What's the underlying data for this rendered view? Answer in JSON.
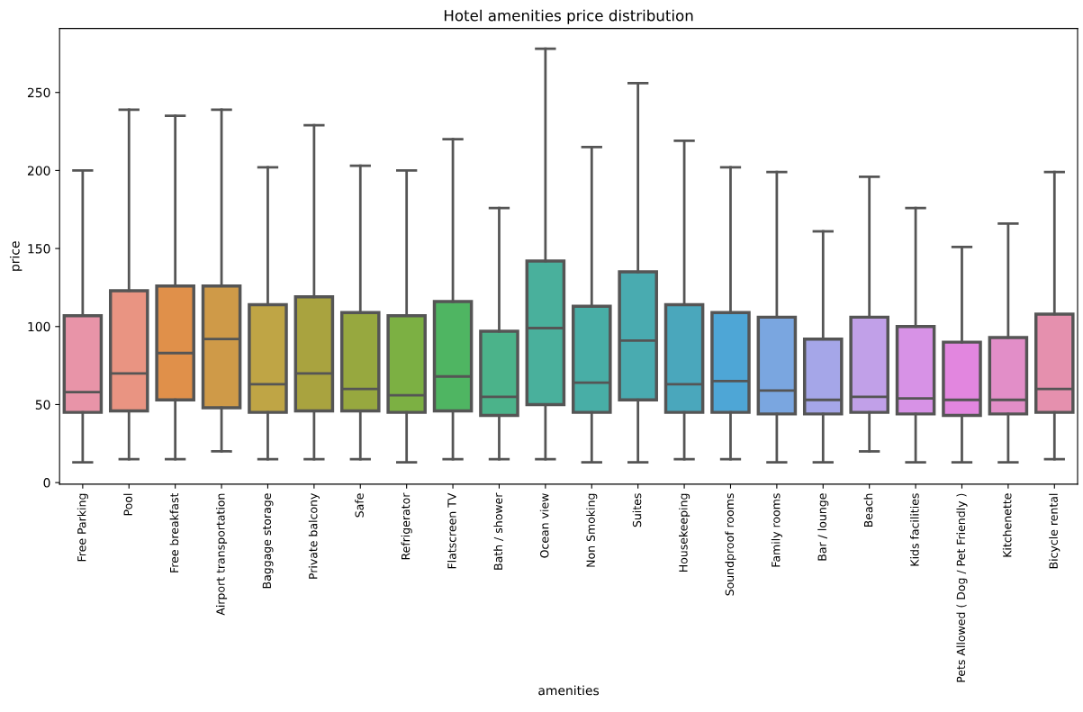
{
  "chart_data": {
    "type": "box",
    "title": "Hotel amenities price distribution",
    "xlabel": "amenities",
    "ylabel": "price",
    "categories": [
      "Free Parking",
      "Pool",
      "Free breakfast",
      "Airport transportation",
      "Baggage storage",
      "Private balcony",
      "Safe",
      "Refrigerator",
      "Flatscreen TV",
      "Bath / shower",
      "Ocean view",
      "Non Smoking",
      "Suites",
      "Housekeeping",
      "Soundproof rooms",
      "Family rooms",
      "Bar / lounge",
      "Beach",
      "Kids facilities",
      "Pets Allowed ( Dog / Pet Friendly )",
      "Kitchenette",
      "Bicycle rental"
    ],
    "boxes": [
      {
        "low": 13,
        "q1": 45,
        "median": 58,
        "q3": 107,
        "high": 200
      },
      {
        "low": 15,
        "q1": 46,
        "median": 70,
        "q3": 123,
        "high": 239
      },
      {
        "low": 15,
        "q1": 53,
        "median": 83,
        "q3": 126,
        "high": 235
      },
      {
        "low": 20,
        "q1": 48,
        "median": 92,
        "q3": 126,
        "high": 239
      },
      {
        "low": 15,
        "q1": 45,
        "median": 63,
        "q3": 114,
        "high": 202
      },
      {
        "low": 15,
        "q1": 46,
        "median": 70,
        "q3": 119,
        "high": 229
      },
      {
        "low": 15,
        "q1": 46,
        "median": 60,
        "q3": 109,
        "high": 203
      },
      {
        "low": 13,
        "q1": 45,
        "median": 56,
        "q3": 107,
        "high": 200
      },
      {
        "low": 15,
        "q1": 46,
        "median": 68,
        "q3": 116,
        "high": 220
      },
      {
        "low": 15,
        "q1": 43,
        "median": 55,
        "q3": 97,
        "high": 176
      },
      {
        "low": 15,
        "q1": 50,
        "median": 99,
        "q3": 142,
        "high": 278
      },
      {
        "low": 13,
        "q1": 45,
        "median": 64,
        "q3": 113,
        "high": 215
      },
      {
        "low": 13,
        "q1": 53,
        "median": 91,
        "q3": 135,
        "high": 256
      },
      {
        "low": 15,
        "q1": 45,
        "median": 63,
        "q3": 114,
        "high": 219
      },
      {
        "low": 15,
        "q1": 45,
        "median": 65,
        "q3": 109,
        "high": 202
      },
      {
        "low": 13,
        "q1": 44,
        "median": 59,
        "q3": 106,
        "high": 199
      },
      {
        "low": 13,
        "q1": 44,
        "median": 53,
        "q3": 92,
        "high": 161
      },
      {
        "low": 20,
        "q1": 45,
        "median": 55,
        "q3": 106,
        "high": 196
      },
      {
        "low": 13,
        "q1": 44,
        "median": 54,
        "q3": 100,
        "high": 176
      },
      {
        "low": 13,
        "q1": 43,
        "median": 53,
        "q3": 90,
        "high": 151
      },
      {
        "low": 13,
        "q1": 44,
        "median": 53,
        "q3": 93,
        "high": 166
      },
      {
        "low": 15,
        "q1": 45,
        "median": 60,
        "q3": 108,
        "high": 199
      }
    ],
    "colors": [
      "#e894a8",
      "#e99482",
      "#e0904a",
      "#cf9a48",
      "#bfa545",
      "#a9a33f",
      "#97a83f",
      "#7cb043",
      "#4fb562",
      "#4bb38a",
      "#49b09c",
      "#48aea6",
      "#49abb0",
      "#4aa7bc",
      "#4ea6d6",
      "#7aa6e0",
      "#a5a6e8",
      "#c1a0e8",
      "#d792e6",
      "#e286df",
      "#e28ec8",
      "#e590ae"
    ],
    "ylim": [
      -1,
      291
    ],
    "yticks": [
      0,
      50,
      100,
      150,
      200,
      250
    ],
    "grid": false
  }
}
